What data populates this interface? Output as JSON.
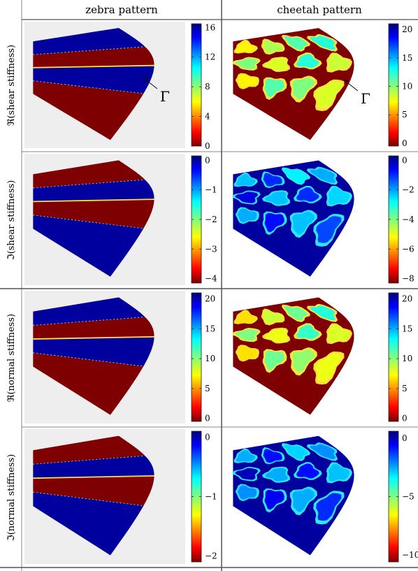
{
  "headers": [
    "zebra pattern",
    "cheetah pattern"
  ],
  "row_labels": [
    "ℜ(shear stiffness)",
    "ℑ(shear stiffness)",
    "ℜ(normal stiffness)",
    "ℑ(normal stiffness)"
  ],
  "boundary_label": "Γ",
  "colormap": "jet",
  "colors": {
    "band_high": "#7f0000",
    "band_low": "#00009f",
    "panel_bg": "#eeeeee",
    "rule": "#555555"
  },
  "panels": [
    [
      {
        "pattern": "zebra",
        "min": 0,
        "max": 16.5,
        "ticks": [
          16,
          12,
          8,
          4,
          0
        ],
        "tick_labels": [
          "16",
          "12",
          "8",
          "4",
          "0"
        ],
        "bands": [
          "low",
          "high",
          "low",
          "high"
        ],
        "annot": true
      },
      {
        "pattern": "cheetah",
        "min": -0.5,
        "max": 21,
        "ticks": [
          20,
          15,
          10,
          5,
          0
        ],
        "tick_labels": [
          "20",
          "15",
          "10",
          "5",
          "0"
        ],
        "bg": "high",
        "spot_fill": [
          0.35,
          0.45,
          0.55,
          0.6,
          0.5,
          0.4,
          0.6,
          0.42,
          0.35,
          0.55,
          0.5,
          0.4
        ],
        "annot": true
      }
    ],
    [
      {
        "pattern": "zebra",
        "min": -4.15,
        "max": 0.15,
        "ticks": [
          0,
          -1,
          -2,
          -3,
          -4
        ],
        "tick_labels": [
          "0",
          "−1",
          "−2",
          "−3",
          "−4"
        ],
        "bands": [
          "high",
          "low",
          "high",
          "low"
        ],
        "annot": false
      },
      {
        "pattern": "cheetah",
        "min": -8.3,
        "max": 0.3,
        "ticks": [
          0,
          -2,
          -4,
          -6,
          -8
        ],
        "tick_labels": [
          "0",
          "−2",
          "−4",
          "−6",
          "−8"
        ],
        "bg": "low",
        "spot_fill": [
          0.7,
          0.85,
          0.65,
          0.72,
          0.92,
          0.7,
          0.85,
          0.68,
          0.72,
          0.88,
          0.7,
          0.82
        ],
        "annot": false
      }
    ],
    [
      {
        "pattern": "zebra",
        "min": -0.5,
        "max": 21,
        "ticks": [
          20,
          15,
          10,
          5,
          0
        ],
        "tick_labels": [
          "20",
          "15",
          "10",
          "5",
          "0"
        ],
        "bands": [
          "low",
          "high",
          "low",
          "high"
        ],
        "annot": false
      },
      {
        "pattern": "cheetah",
        "min": -0.5,
        "max": 21,
        "ticks": [
          20,
          15,
          10,
          5,
          0
        ],
        "tick_labels": [
          "20",
          "15",
          "10",
          "5",
          "0"
        ],
        "bg": "high",
        "spot_fill": [
          0.33,
          0.42,
          0.52,
          0.6,
          0.5,
          0.38,
          0.58,
          0.4,
          0.33,
          0.52,
          0.48,
          0.38
        ],
        "annot": false
      }
    ],
    [
      {
        "pattern": "zebra",
        "min": -2.1,
        "max": 0.1,
        "ticks": [
          0,
          -1,
          -2
        ],
        "tick_labels": [
          "0",
          "−1",
          "−2"
        ],
        "bands": [
          "high",
          "low",
          "high",
          "low"
        ],
        "annot": false
      },
      {
        "pattern": "cheetah",
        "min": -10.6,
        "max": 0.6,
        "ticks": [
          0,
          -5,
          -10
        ],
        "tick_labels": [
          "0",
          "−5",
          "−10"
        ],
        "bg": "low",
        "spot_fill": [
          0.72,
          0.88,
          0.68,
          0.75,
          0.95,
          0.72,
          0.88,
          0.7,
          0.75,
          0.9,
          0.72,
          0.85
        ],
        "annot": false
      }
    ]
  ]
}
